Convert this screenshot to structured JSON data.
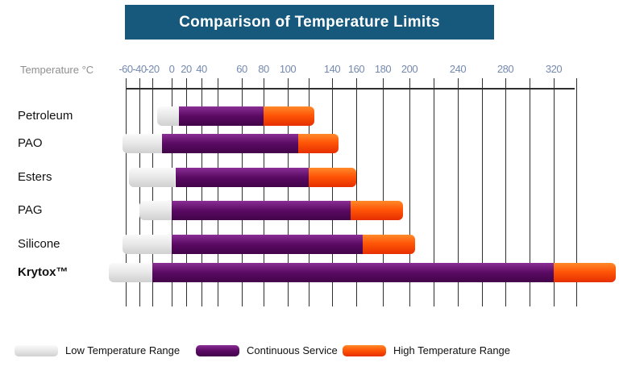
{
  "title": "Comparison of Temperature Limits",
  "axis": {
    "label": "Temperature °C",
    "ticks": [
      {
        "t": -60,
        "label": "-60"
      },
      {
        "t": -40,
        "label": "-40"
      },
      {
        "t": -20,
        "label": "-20"
      },
      {
        "t": 0,
        "label": "0"
      },
      {
        "t": 20,
        "label": "20"
      },
      {
        "t": 40,
        "label": "40"
      },
      {
        "t": 60,
        "label": "60"
      },
      {
        "t": 80,
        "label": "80"
      },
      {
        "t": 100,
        "label": "100"
      },
      {
        "t": 140,
        "label": "140"
      },
      {
        "t": 160,
        "label": "160"
      },
      {
        "t": 180,
        "label": "180"
      },
      {
        "t": 200,
        "label": "200"
      },
      {
        "t": 240,
        "label": "240"
      },
      {
        "t": 280,
        "label": "280"
      },
      {
        "t": 320,
        "label": "320"
      }
    ],
    "gridlines": [
      -60,
      -40,
      -20,
      0,
      20,
      40,
      48,
      60,
      80,
      100,
      120,
      140,
      160,
      180,
      200,
      220,
      240,
      260,
      280,
      300,
      320,
      340
    ]
  },
  "chart_data": {
    "type": "bar",
    "orientation": "horizontal",
    "title": "Comparison of Temperature Limits",
    "xlabel": "Temperature °C",
    "xlim": [
      -60,
      340
    ],
    "grid": true,
    "legend_position": "bottom",
    "categories": [
      "Petroleum",
      "PAO",
      "Esters",
      "PAG",
      "Silicone",
      "Krytox™"
    ],
    "emphasis_category": "Krytox™",
    "series": [
      {
        "name": "Low Temperature Range",
        "color": "#e6e6e6",
        "ranges": [
          [
            -15,
            10
          ],
          [
            -65,
            -10
          ],
          [
            -55,
            5
          ],
          [
            -40,
            0
          ],
          [
            -65,
            0
          ],
          [
            -85,
            -20
          ]
        ]
      },
      {
        "name": "Continuous Service",
        "color": "#5a0a63",
        "ranges": [
          [
            10,
            80
          ],
          [
            -10,
            110
          ],
          [
            5,
            120
          ],
          [
            0,
            155
          ],
          [
            0,
            165
          ],
          [
            -20,
            320
          ]
        ]
      },
      {
        "name": "High Temperature Range",
        "color": "#fd4f00",
        "ranges": [
          [
            80,
            125
          ],
          [
            110,
            145
          ],
          [
            120,
            160
          ],
          [
            155,
            195
          ],
          [
            165,
            205
          ],
          [
            320,
            375
          ]
        ]
      }
    ],
    "high_range_clipped_for": "Krytox™"
  },
  "colors": {
    "banner": "#17597d",
    "title_text": "#ffffff",
    "tick_text": "#7489b0",
    "axis_text": "#8f8f8f",
    "gridline": "#2f2f2f",
    "low": "#e6e6e6",
    "continuous": "#5a0a63",
    "high": "#fd4f00"
  }
}
